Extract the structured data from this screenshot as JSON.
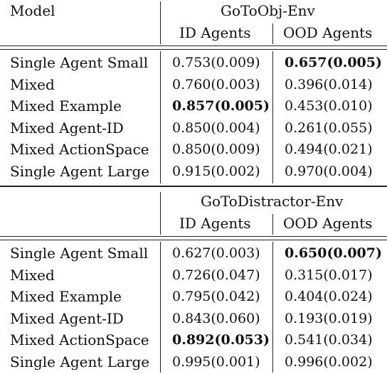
{
  "header": {
    "model_label": "Model"
  },
  "sections": [
    {
      "env": "GoToObj-Env",
      "col_id": "ID Agents",
      "col_ood": "OOD Agents",
      "rows": [
        {
          "model": "Single Agent Small",
          "id": "0.753(0.009)",
          "ood": "0.657(0.005)",
          "id_bold": false,
          "ood_bold": true
        },
        {
          "model": "Mixed",
          "id": "0.760(0.003)",
          "ood": "0.396(0.014)",
          "id_bold": false,
          "ood_bold": false
        },
        {
          "model": "Mixed Example",
          "id": "0.857(0.005)",
          "ood": "0.453(0.010)",
          "id_bold": true,
          "ood_bold": false
        },
        {
          "model": "Mixed Agent-ID",
          "id": "0.850(0.004)",
          "ood": "0.261(0.055)",
          "id_bold": false,
          "ood_bold": false
        },
        {
          "model": "Mixed ActionSpace",
          "id": "0.850(0.009)",
          "ood": "0.494(0.021)",
          "id_bold": false,
          "ood_bold": false
        },
        {
          "model": "Single Agent Large",
          "id": "0.915(0.002)",
          "ood": "0.970(0.004)",
          "id_bold": false,
          "ood_bold": false
        }
      ]
    },
    {
      "env": "GoToDistractor-Env",
      "col_id": "ID Agents",
      "col_ood": "OOD Agents",
      "rows": [
        {
          "model": "Single Agent Small",
          "id": "0.627(0.003)",
          "ood": "0.650(0.007)",
          "id_bold": false,
          "ood_bold": true
        },
        {
          "model": "Mixed",
          "id": "0.726(0.047)",
          "ood": "0.315(0.017)",
          "id_bold": false,
          "ood_bold": false
        },
        {
          "model": "Mixed Example",
          "id": "0.795(0.042)",
          "ood": "0.404(0.024)",
          "id_bold": false,
          "ood_bold": false
        },
        {
          "model": "Mixed Agent-ID",
          "id": "0.843(0.060)",
          "ood": "0.193(0.019)",
          "id_bold": false,
          "ood_bold": false
        },
        {
          "model": "Mixed ActionSpace",
          "id": "0.892(0.053)",
          "ood": "0.541(0.034)",
          "id_bold": true,
          "ood_bold": false
        },
        {
          "model": "Single Agent Large",
          "id": "0.995(0.001)",
          "ood": "0.996(0.002)",
          "id_bold": false,
          "ood_bold": false
        }
      ]
    }
  ]
}
